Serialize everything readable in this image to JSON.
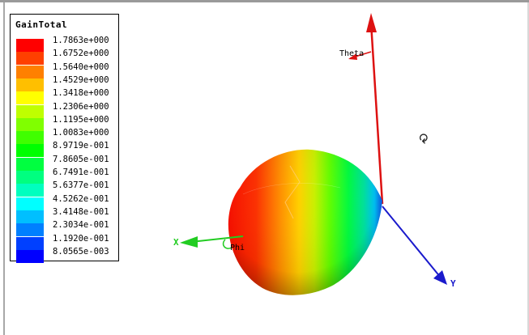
{
  "legend": {
    "title": "GainTotal",
    "entries": [
      {
        "value": "1.7863e+000",
        "color": "#ff0000"
      },
      {
        "value": "1.6752e+000",
        "color": "#ff4000"
      },
      {
        "value": "1.5640e+000",
        "color": "#ff8000"
      },
      {
        "value": "1.4529e+000",
        "color": "#ffbf00"
      },
      {
        "value": "1.3418e+000",
        "color": "#ffff00"
      },
      {
        "value": "1.2306e+000",
        "color": "#bfff00"
      },
      {
        "value": "1.1195e+000",
        "color": "#80ff00"
      },
      {
        "value": "1.0083e+000",
        "color": "#40ff00"
      },
      {
        "value": "8.9719e-001",
        "color": "#00ff00"
      },
      {
        "value": "7.8605e-001",
        "color": "#00ff40"
      },
      {
        "value": "6.7491e-001",
        "color": "#00ff80"
      },
      {
        "value": "5.6377e-001",
        "color": "#00ffbf"
      },
      {
        "value": "4.5262e-001",
        "color": "#00ffff"
      },
      {
        "value": "3.4148e-001",
        "color": "#00bfff"
      },
      {
        "value": "2.3034e-001",
        "color": "#0080ff"
      },
      {
        "value": "1.1920e-001",
        "color": "#0040ff"
      },
      {
        "value": "8.0565e-003",
        "color": "#0000ff"
      }
    ]
  },
  "scene": {
    "theta_label": "Theta",
    "phi_label": "Phi",
    "x_axis_label": "X",
    "y_axis_label": "Y",
    "x_axis_color": "#22cc22",
    "y_axis_color": "#1a1acc",
    "z_axis_color": "#dd1111",
    "rotate_icon": "rotate-icon"
  }
}
